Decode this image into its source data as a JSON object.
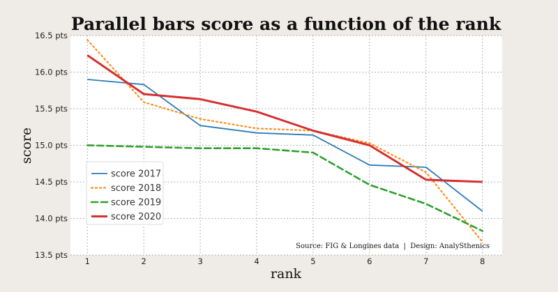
{
  "chart_data": {
    "type": "line",
    "title": "Parallel bars score as a function of the rank",
    "xlabel": "rank",
    "ylabel": "score",
    "x": [
      1,
      2,
      3,
      4,
      5,
      6,
      7,
      8
    ],
    "x_ticks": [
      "1",
      "2",
      "3",
      "4",
      "5",
      "6",
      "7",
      "8"
    ],
    "xlim": [
      0.7,
      8.35
    ],
    "ylim": [
      13.5,
      16.5
    ],
    "y_ticks": [
      "13.5 pts",
      "14.0 pts",
      "14.5 pts",
      "15.0 pts",
      "15.5 pts",
      "16.0 pts",
      "16.5 pts"
    ],
    "y_tick_values": [
      13.5,
      14.0,
      14.5,
      15.0,
      15.5,
      16.0,
      16.5
    ],
    "grid": true,
    "legend_position": "lower-left",
    "series": [
      {
        "name": "score 2017",
        "color": "#2b7bb9",
        "style": "solid",
        "width": 1.8,
        "values": [
          15.9,
          15.83,
          15.27,
          15.17,
          15.14,
          14.73,
          14.7,
          14.1
        ]
      },
      {
        "name": "score 2018",
        "color": "#ff8c1a",
        "style": "dotted",
        "width": 2.2,
        "values": [
          16.44,
          15.59,
          15.36,
          15.23,
          15.2,
          15.03,
          14.63,
          13.68
        ]
      },
      {
        "name": "score 2019",
        "color": "#2ca02c",
        "style": "dashed",
        "width": 2.6,
        "values": [
          15.0,
          14.98,
          14.96,
          14.96,
          14.9,
          14.46,
          14.2,
          13.83
        ]
      },
      {
        "name": "score 2020",
        "color": "#d62f2f",
        "style": "solid",
        "width": 3.0,
        "values": [
          16.23,
          15.7,
          15.63,
          15.46,
          15.2,
          15.0,
          14.53,
          14.5
        ]
      }
    ],
    "source_note": "Source: FIG & Longines data  |  Design: AnalySthenics"
  }
}
